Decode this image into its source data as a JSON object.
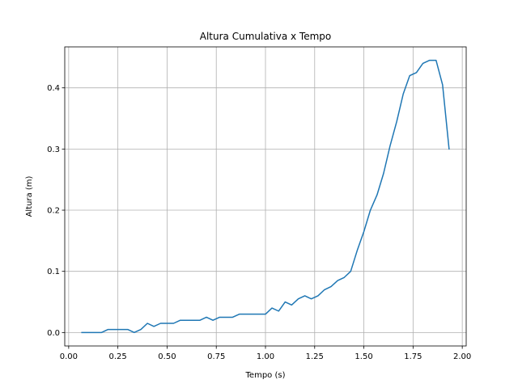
{
  "chart_data": {
    "type": "line",
    "title": "Altura Cumulativa x Tempo",
    "xlabel": "Tempo (s)",
    "ylabel": "Altura (m)",
    "xlim": [
      -0.02,
      2.02
    ],
    "ylim": [
      -0.022,
      0.467
    ],
    "grid": true,
    "x_ticks": [
      0.0,
      0.25,
      0.5,
      0.75,
      1.0,
      1.25,
      1.5,
      1.75,
      2.0
    ],
    "x_tick_labels": [
      "0.00",
      "0.25",
      "0.50",
      "0.75",
      "1.00",
      "1.25",
      "1.50",
      "1.75",
      "2.00"
    ],
    "y_ticks": [
      0.0,
      0.1,
      0.2,
      0.3,
      0.4
    ],
    "y_tick_labels": [
      "0.0",
      "0.1",
      "0.2",
      "0.3",
      "0.4"
    ],
    "series": [
      {
        "color": "#1f77b4",
        "x": [
          0.067,
          0.1,
          0.133,
          0.167,
          0.2,
          0.233,
          0.267,
          0.3,
          0.333,
          0.367,
          0.4,
          0.433,
          0.467,
          0.5,
          0.533,
          0.567,
          0.6,
          0.633,
          0.667,
          0.7,
          0.733,
          0.767,
          0.8,
          0.833,
          0.867,
          0.9,
          0.933,
          0.967,
          1.0,
          1.033,
          1.067,
          1.1,
          1.133,
          1.167,
          1.2,
          1.233,
          1.267,
          1.3,
          1.333,
          1.367,
          1.4,
          1.433,
          1.467,
          1.5,
          1.533,
          1.567,
          1.6,
          1.633,
          1.667,
          1.7,
          1.733,
          1.767,
          1.8,
          1.833,
          1.867,
          1.9,
          1.933
        ],
        "y": [
          0.0,
          0.0,
          0.0,
          0.0,
          0.005,
          0.005,
          0.005,
          0.005,
          0.0,
          0.005,
          0.015,
          0.01,
          0.015,
          0.015,
          0.015,
          0.02,
          0.02,
          0.02,
          0.02,
          0.025,
          0.02,
          0.025,
          0.025,
          0.025,
          0.03,
          0.03,
          0.03,
          0.03,
          0.03,
          0.04,
          0.035,
          0.05,
          0.045,
          0.055,
          0.06,
          0.055,
          0.06,
          0.07,
          0.075,
          0.085,
          0.09,
          0.1,
          0.135,
          0.165,
          0.2,
          0.225,
          0.26,
          0.305,
          0.345,
          0.39,
          0.42,
          0.425,
          0.44,
          0.445,
          0.445,
          0.405,
          0.3
        ]
      }
    ]
  }
}
